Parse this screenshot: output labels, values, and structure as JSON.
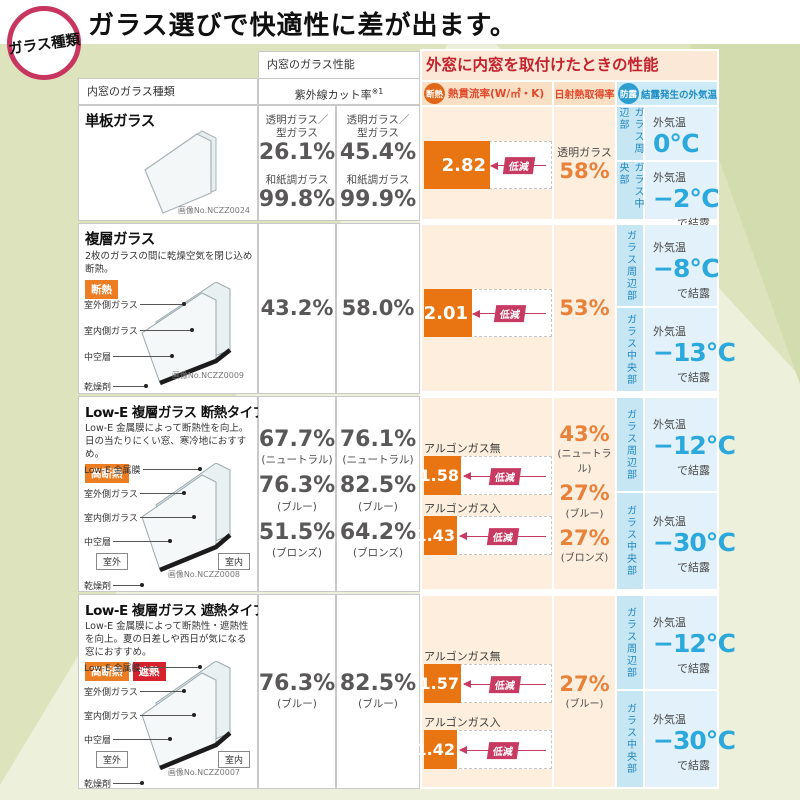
{
  "page": {
    "title": "ガラス選びで快適性に差が出ます。",
    "corner_badge": "ガラス種類"
  },
  "colors": {
    "bar_orange": "#e87511",
    "badge_orange": "#ed7d23",
    "badge_red": "#d7212d",
    "reduce_crimson": "#c73a62",
    "header_red": "#e0492c",
    "outer_title_red": "#c4232e",
    "dew_blue": "#2d9ccf",
    "temp_blue": "#2ba8dc",
    "bg_green": "#dde3bd",
    "peach": "#fdeedd",
    "pos_blue_bg": "#c6e6f4",
    "temp_blue_bg": "#e2f1fa"
  },
  "common": {
    "reduce": "低減",
    "outdoor": "外気温",
    "dew_note": "で結露",
    "periphery": "ガラス周辺部",
    "center": "ガラス中央部",
    "outside": "室外",
    "inside": "室内"
  },
  "header": {
    "glass_type_col": "内窓のガラス種類",
    "inner_perf": "内窓のガラス性能",
    "uv_cut": "紫外線カット率",
    "uv_cut_note": "※1",
    "outer_perf_title": "外窓に内窓を取付けたときの性能",
    "insulation_badge": "断熱",
    "u_value_label": "熱貫流率(W/㎡・K)",
    "solar_label": "日射熱取得率",
    "dew_badge": "防露",
    "dew_label": "結露発生の外気温"
  },
  "rows": [
    {
      "name": "単板ガラス",
      "desc": "",
      "image_no": "画像No.NCZZ0024",
      "uv1": [
        {
          "line1": "透明ガラス／",
          "line2": "型ガラス",
          "value": "26.1%",
          "sub": ""
        },
        {
          "line1": "和紙調ガラス",
          "line2": "",
          "value": "99.8%",
          "sub": ""
        }
      ],
      "uv2": [
        {
          "line1": "透明ガラス／",
          "line2": "型ガラス",
          "value": "45.4%",
          "sub": ""
        },
        {
          "line1": "和紙調ガラス",
          "line2": "",
          "value": "99.9%",
          "sub": ""
        }
      ],
      "u_groups": [
        {
          "label": "",
          "value": "2.82"
        }
      ],
      "solar": [
        {
          "label": "透明ガラス",
          "value": "58%",
          "sub": ""
        }
      ],
      "dew": {
        "periphery": "0℃",
        "center": "−2℃"
      }
    },
    {
      "name": "複層ガラス",
      "desc": "2枚のガラスの間に乾燥空気を閉じ込め断熱。",
      "badges": [
        "断熱"
      ],
      "diagram_labels": [
        "室外側ガラス",
        "室内側ガラス",
        "中空層",
        "乾燥剤"
      ],
      "image_no": "画像No.NCZZ0009",
      "uv1": [
        {
          "line1": "",
          "line2": "",
          "value": "43.2%",
          "sub": ""
        }
      ],
      "uv2": [
        {
          "line1": "",
          "line2": "",
          "value": "58.0%",
          "sub": ""
        }
      ],
      "u_groups": [
        {
          "label": "",
          "value": "2.01"
        }
      ],
      "solar": [
        {
          "label": "",
          "value": "53%",
          "sub": ""
        }
      ],
      "dew": {
        "periphery": "−8℃",
        "center": "−13℃"
      }
    },
    {
      "name": "Low-E 複層ガラス 断熱タイプ",
      "desc": "Low-E 金属膜によって断熱性を向上。日の当たりにくい窓、寒冷地におすすめ。",
      "badges": [
        "高断熱"
      ],
      "diagram_labels": [
        "Low-E 金属膜",
        "室外側ガラス",
        "室内側ガラス",
        "中空層",
        "乾燥剤"
      ],
      "image_no": "画像No.NCZZ0008",
      "uv1": [
        {
          "line1": "",
          "line2": "",
          "value": "67.7%",
          "sub": "(ニュートラル)"
        },
        {
          "line1": "",
          "line2": "",
          "value": "76.3%",
          "sub": "(ブルー)"
        },
        {
          "line1": "",
          "line2": "",
          "value": "51.5%",
          "sub": "(ブロンズ)"
        }
      ],
      "uv2": [
        {
          "line1": "",
          "line2": "",
          "value": "76.1%",
          "sub": "(ニュートラル)"
        },
        {
          "line1": "",
          "line2": "",
          "value": "82.5%",
          "sub": "(ブルー)"
        },
        {
          "line1": "",
          "line2": "",
          "value": "64.2%",
          "sub": "(ブロンズ)"
        }
      ],
      "u_groups": [
        {
          "label": "アルゴンガス無",
          "value": "1.58"
        },
        {
          "label": "アルゴンガス入",
          "value": "1.43"
        }
      ],
      "solar": [
        {
          "label": "",
          "value": "43%",
          "sub": "(ニュートラル)"
        },
        {
          "label": "",
          "value": "27%",
          "sub": "(ブルー)"
        },
        {
          "label": "",
          "value": "27%",
          "sub": "(ブロンズ)"
        }
      ],
      "dew": {
        "periphery": "−12℃",
        "center": "−30℃"
      }
    },
    {
      "name": "Low-E 複層ガラス 遮熱タイプ",
      "desc": "Low-E 金属膜によって断熱性・遮熱性を向上。夏の日差しや西日が気になる窓におすすめ。",
      "badges": [
        "高断熱",
        "遮熱"
      ],
      "diagram_labels": [
        "Low-E 金属膜",
        "室外側ガラス",
        "室内側ガラス",
        "中空層",
        "乾燥剤"
      ],
      "image_no": "画像No.NCZZ0007",
      "uv1": [
        {
          "line1": "",
          "line2": "",
          "value": "76.3%",
          "sub": "(ブルー)"
        }
      ],
      "uv2": [
        {
          "line1": "",
          "line2": "",
          "value": "82.5%",
          "sub": "(ブルー)"
        }
      ],
      "u_groups": [
        {
          "label": "アルゴンガス無",
          "value": "1.57"
        },
        {
          "label": "アルゴンガス入",
          "value": "1.42"
        }
      ],
      "solar": [
        {
          "label": "",
          "value": "27%",
          "sub": "(ブルー)"
        }
      ],
      "dew": {
        "periphery": "−12℃",
        "center": "−30℃"
      }
    }
  ]
}
